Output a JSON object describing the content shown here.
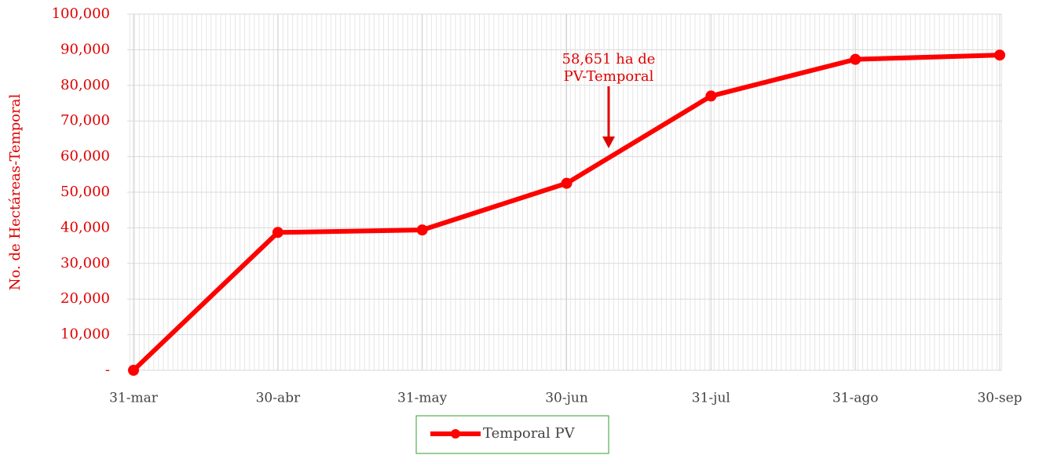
{
  "chart_data": {
    "type": "line",
    "y_label": "No. de Hectáreas-Temporal",
    "categories": [
      "31-mar",
      "30-abr",
      "31-may",
      "30-jun",
      "31-jul",
      "31-ago",
      "30-sep"
    ],
    "series": [
      {
        "name": "Temporal PV",
        "color": "#ff0000",
        "values": [
          0,
          38700,
          39400,
          52500,
          77000,
          87300,
          88500
        ]
      }
    ],
    "ylim": [
      0,
      100000
    ],
    "yticks": [
      {
        "value": 0,
        "label": "-"
      },
      {
        "value": 10000,
        "label": "10,000"
      },
      {
        "value": 20000,
        "label": "20,000"
      },
      {
        "value": 30000,
        "label": "30,000"
      },
      {
        "value": 40000,
        "label": "40,000"
      },
      {
        "value": 50000,
        "label": "50,000"
      },
      {
        "value": 60000,
        "label": "60,000"
      },
      {
        "value": 70000,
        "label": "70,000"
      },
      {
        "value": 80000,
        "label": "80,000"
      },
      {
        "value": 90000,
        "label": "90,000"
      },
      {
        "value": 100000,
        "label": "100,000"
      }
    ],
    "grid": true,
    "legend": "bottom",
    "annotation": {
      "lines": [
        "58,651 ha de",
        "PV-Temporal"
      ]
    }
  }
}
